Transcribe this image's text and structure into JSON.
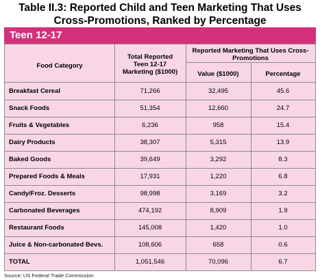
{
  "title_line1": "Table II.3:  Reported Child and Teen Marketing That Uses",
  "title_line2": "Cross-Promotions, Ranked by Percentage",
  "banner": "Teen 12-17",
  "headers": {
    "category": "Food Category",
    "total": "Total Reported Teen 12-17 Marketing ($1000)",
    "group": "Reported Marketing That Uses Cross-Promotions",
    "value": "Value ($1000)",
    "percentage": "Percentage"
  },
  "rows": [
    {
      "category": "Breakfast Cereal",
      "total": "71,266",
      "value": "32,495",
      "pct": "45.6"
    },
    {
      "category": "Snack Foods",
      "total": "51,354",
      "value": "12,660",
      "pct": "24.7"
    },
    {
      "category": "Fruits & Vegetables",
      "total": "6,236",
      "value": "958",
      "pct": "15.4"
    },
    {
      "category": "Dairy Products",
      "total": "38,307",
      "value": "5,315",
      "pct": "13.9"
    },
    {
      "category": "Baked Goods",
      "total": "39,649",
      "value": "3,292",
      "pct": "8.3"
    },
    {
      "category": "Prepared Foods & Meals",
      "total": "17,931",
      "value": "1,220",
      "pct": "6.8"
    },
    {
      "category": "Candy/Froz. Desserts",
      "total": "98,998",
      "value": "3,169",
      "pct": "3.2"
    },
    {
      "category": "Carbonated Beverages",
      "total": "474,192",
      "value": "8,909",
      "pct": "1.9"
    },
    {
      "category": "Restaurant Foods",
      "total": "145,008",
      "value": "1,420",
      "pct": "1.0"
    },
    {
      "category": "Juice & Non-carbonated Bevs.",
      "total": "108,606",
      "value": "658",
      "pct": "0.6"
    },
    {
      "category": "TOTAL",
      "total": "1,051,546",
      "value": "70,096",
      "pct": "6.7"
    }
  ],
  "source": "Source: US Federal Trade Commission",
  "chart_data": {
    "type": "table",
    "title": "Table II.3:  Reported Child and Teen Marketing That Uses Cross-Promotions, Ranked by Percentage",
    "subtitle": "Teen 12-17",
    "columns": [
      "Food Category",
      "Total Reported Teen 12-17 Marketing ($1000)",
      "Value ($1000)",
      "Percentage"
    ],
    "categories": [
      "Breakfast Cereal",
      "Snack Foods",
      "Fruits & Vegetables",
      "Dairy Products",
      "Baked Goods",
      "Prepared Foods & Meals",
      "Candy/Froz. Desserts",
      "Carbonated Beverages",
      "Restaurant Foods",
      "Juice & Non-carbonated Bevs.",
      "TOTAL"
    ],
    "series": [
      {
        "name": "Total Reported Teen 12-17 Marketing ($1000)",
        "values": [
          71266,
          51354,
          6236,
          38307,
          39649,
          17931,
          98998,
          474192,
          145008,
          108606,
          1051546
        ]
      },
      {
        "name": "Value ($1000)",
        "values": [
          32495,
          12660,
          958,
          5315,
          3292,
          1220,
          3169,
          8909,
          1420,
          658,
          70096
        ]
      },
      {
        "name": "Percentage",
        "values": [
          45.6,
          24.7,
          15.4,
          13.9,
          8.3,
          6.8,
          3.2,
          1.9,
          1.0,
          0.6,
          6.7
        ]
      }
    ]
  }
}
